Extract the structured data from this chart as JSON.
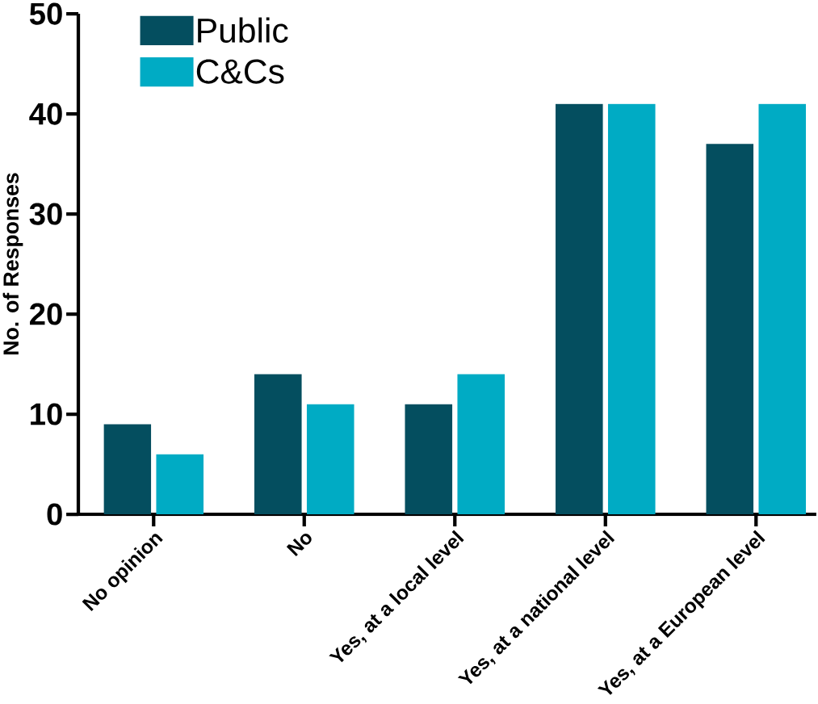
{
  "chart_data": {
    "type": "bar",
    "ylabel": "No. of  Responses",
    "categories": [
      "No opinion",
      "No",
      "Yes, at a local level",
      "Yes, at a national level",
      "Yes, at a European level"
    ],
    "series": [
      {
        "name": "Public",
        "color": "#044e5f",
        "values": [
          9,
          14,
          11,
          41,
          37
        ]
      },
      {
        "name": "C&Cs",
        "color": "#00abc4",
        "values": [
          6,
          11,
          14,
          41,
          41
        ]
      }
    ],
    "ylim": [
      0,
      50
    ],
    "yticks": [
      0,
      10,
      20,
      30,
      40,
      50
    ],
    "grid": false,
    "legend": "top left"
  }
}
